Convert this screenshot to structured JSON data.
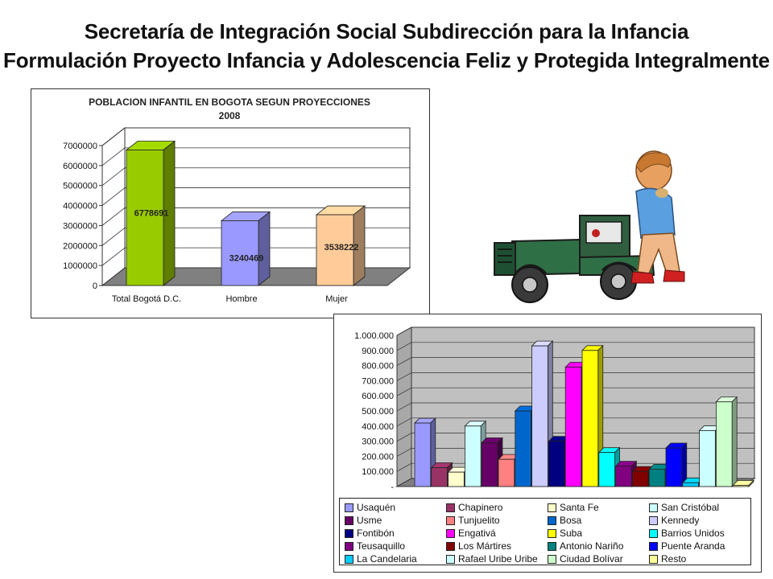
{
  "header": {
    "title_line1": "Secretaría de Integración Social Subdirección para la Infancia",
    "title_line2": "Formulación Proyecto Infancia y Adolescencia Feliz y Protegida Integralmente"
  },
  "chart_data": [
    {
      "type": "bar",
      "title": "POBLACION INFANTIL EN BOGOTA SEGUN PROYECCIONES",
      "subtitle": "2008",
      "categories": [
        "Total Bogotá D.C.",
        "Hombre",
        "Mujer"
      ],
      "values": [
        6778691,
        3240469,
        3538222
      ],
      "value_labels": [
        "6778691",
        "3240469",
        "3538222"
      ],
      "colors": [
        "#99cc00",
        "#9999ff",
        "#ffcc99"
      ],
      "ylim": [
        0,
        7000000
      ],
      "yticks": [
        "0",
        "1000000",
        "2000000",
        "3000000",
        "4000000",
        "5000000",
        "6000000",
        "7000000"
      ],
      "grid": true,
      "style": "3d"
    },
    {
      "type": "bar",
      "categories": [
        "Usaquén",
        "Chapinero",
        "Santa Fe",
        "San Cristóbal",
        "Usme",
        "Tunjuelito",
        "Bosa",
        "Kennedy",
        "Fontibón",
        "Engativá",
        "Suba",
        "Barrios Unidos",
        "Teusaquillo",
        "Los Mártires",
        "Antonio Nariño",
        "Puente Aranda",
        "La Candelaria",
        "Rafael Uribe Uribe",
        "Ciudad Bolívar",
        "Resto"
      ],
      "values": [
        420000,
        125000,
        95000,
        400000,
        290000,
        180000,
        500000,
        930000,
        300000,
        790000,
        900000,
        225000,
        135000,
        100000,
        115000,
        255000,
        25000,
        370000,
        560000,
        8000
      ],
      "colors": [
        "#9999ff",
        "#993366",
        "#ffffcc",
        "#ccffff",
        "#660066",
        "#ff8080",
        "#0066cc",
        "#ccccff",
        "#000080",
        "#ff00ff",
        "#ffff00",
        "#00ffff",
        "#800080",
        "#800000",
        "#008080",
        "#0000ff",
        "#00ccff",
        "#ccffff",
        "#ccffcc",
        "#ffff99"
      ],
      "ylim": [
        0,
        1000000
      ],
      "yticks": [
        "-",
        "100.000",
        "200.000",
        "300.000",
        "400.000",
        "500.000",
        "600.000",
        "700.000",
        "800.000",
        "900.000",
        "1.000.000"
      ],
      "grid": true,
      "legend_position": "bottom",
      "style": "3d"
    }
  ]
}
